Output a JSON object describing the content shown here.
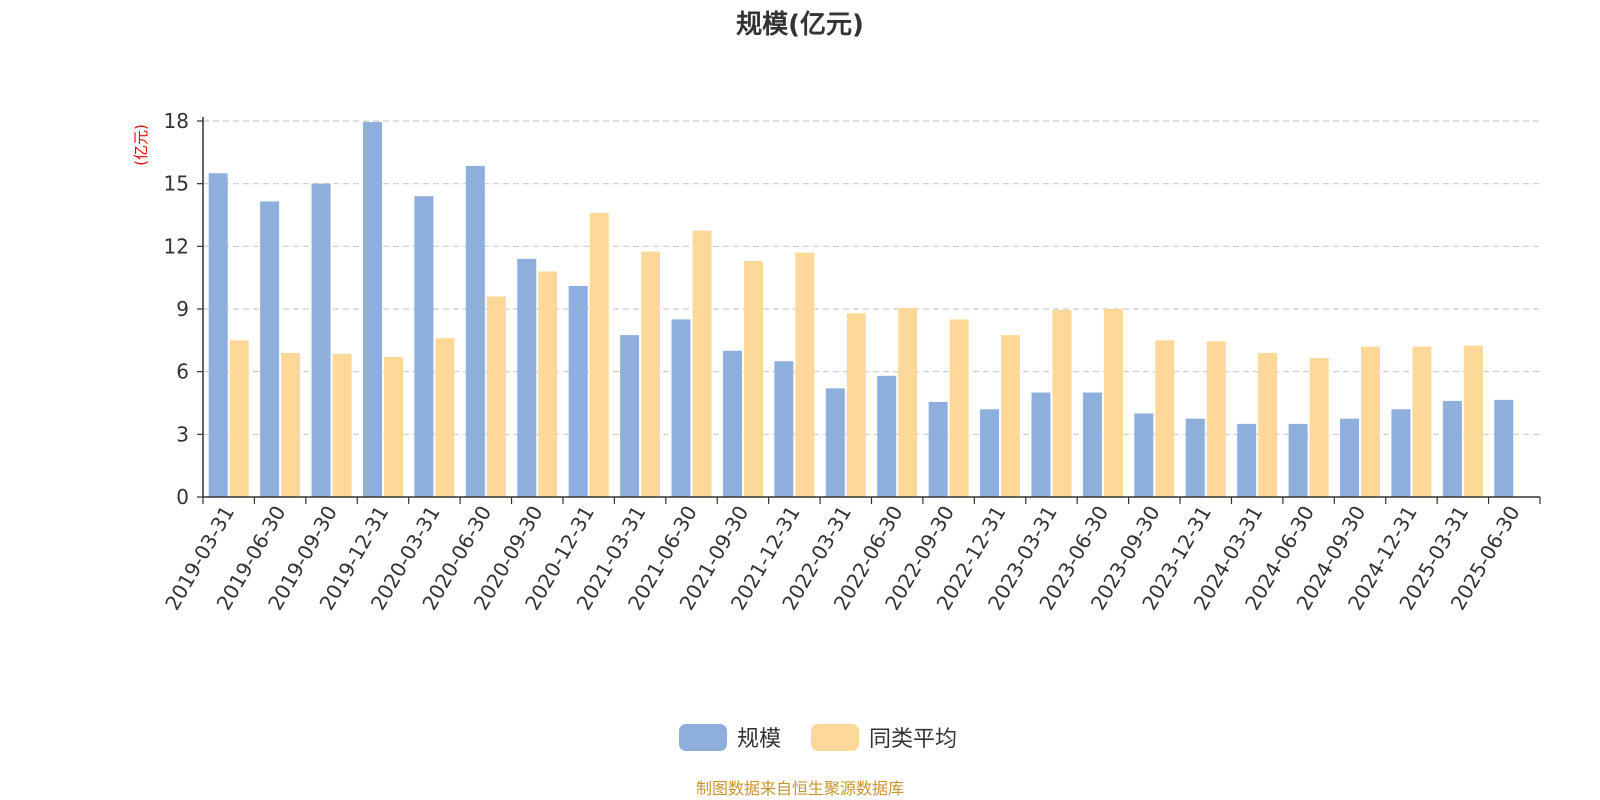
{
  "chart_data": {
    "type": "bar",
    "title": "规模(亿元)",
    "ylabel": "(亿元)",
    "xlabel": "",
    "ylim": [
      0,
      18
    ],
    "yticks": [
      0,
      3,
      6,
      9,
      12,
      15,
      18
    ],
    "grid": true,
    "legend_position": "bottom-center",
    "categories": [
      "2019-03-31",
      "2019-06-30",
      "2019-09-30",
      "2019-12-31",
      "2020-03-31",
      "2020-06-30",
      "2020-09-30",
      "2020-12-31",
      "2021-03-31",
      "2021-06-30",
      "2021-09-30",
      "2021-12-31",
      "2022-03-31",
      "2022-06-30",
      "2022-09-30",
      "2022-12-31",
      "2023-03-31",
      "2023-06-30",
      "2023-09-30",
      "2023-12-31",
      "2024-03-31",
      "2024-06-30",
      "2024-09-30",
      "2024-12-31",
      "2025-03-31",
      "2025-06-30"
    ],
    "series": [
      {
        "name": "规模",
        "color": "#8eaedb",
        "values": [
          15.5,
          14.15,
          15.0,
          17.95,
          14.4,
          15.85,
          11.4,
          10.1,
          7.75,
          8.5,
          7.0,
          6.5,
          5.2,
          5.8,
          4.55,
          4.2,
          5.0,
          5.0,
          4.0,
          3.75,
          3.5,
          3.5,
          3.75,
          4.2,
          4.6,
          4.65
        ]
      },
      {
        "name": "同类平均",
        "color": "#fdd899",
        "values": [
          7.5,
          6.9,
          6.85,
          6.7,
          7.6,
          9.6,
          10.8,
          13.6,
          11.75,
          12.75,
          11.3,
          11.7,
          8.8,
          9.05,
          8.5,
          7.75,
          8.95,
          9.0,
          7.5,
          7.45,
          6.9,
          6.65,
          7.2,
          7.2,
          7.25,
          null
        ]
      }
    ]
  },
  "footer": "制图数据来自恒生聚源数据库"
}
